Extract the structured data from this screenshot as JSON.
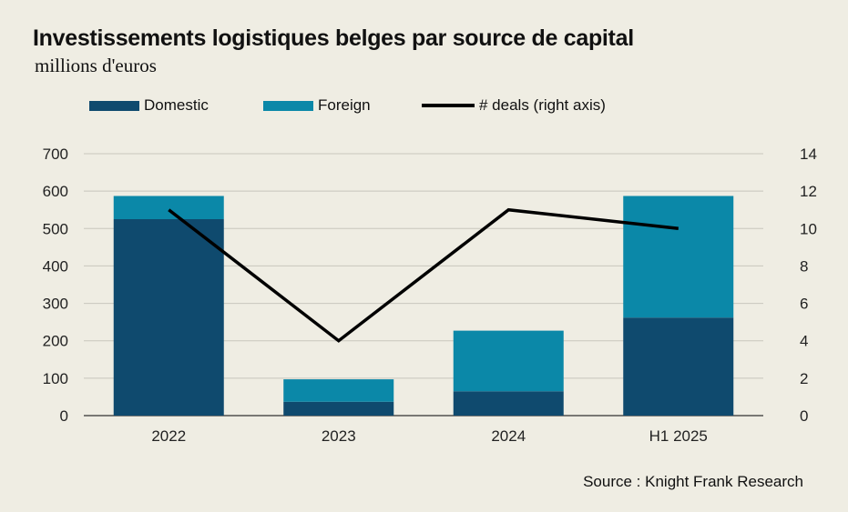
{
  "title": "Investissements logistiques belges par source de capital",
  "subtitle": "millions d'euros",
  "source": "Source : Knight Frank Research",
  "chart_data": {
    "type": "bar",
    "stacked": true,
    "categories": [
      "2022",
      "2023",
      "2024",
      "H1 2025"
    ],
    "series": [
      {
        "name": "Domestic",
        "values": [
          525,
          37,
          65,
          262
        ],
        "color": "#0f4a6e"
      },
      {
        "name": "Foreign",
        "values": [
          62,
          60,
          162,
          325
        ],
        "color": "#0b88a8"
      },
      {
        "name": "# deals (right axis)",
        "type": "line",
        "axis": "right",
        "values": [
          11,
          4,
          11,
          10
        ],
        "color": "#000000"
      }
    ],
    "ylim": [
      0,
      700
    ],
    "yticks": [
      0,
      100,
      200,
      300,
      400,
      500,
      600,
      700
    ],
    "y2lim": [
      0,
      14
    ],
    "y2ticks": [
      0,
      2,
      4,
      6,
      8,
      10,
      12,
      14
    ],
    "grid": true,
    "legend": "top"
  }
}
